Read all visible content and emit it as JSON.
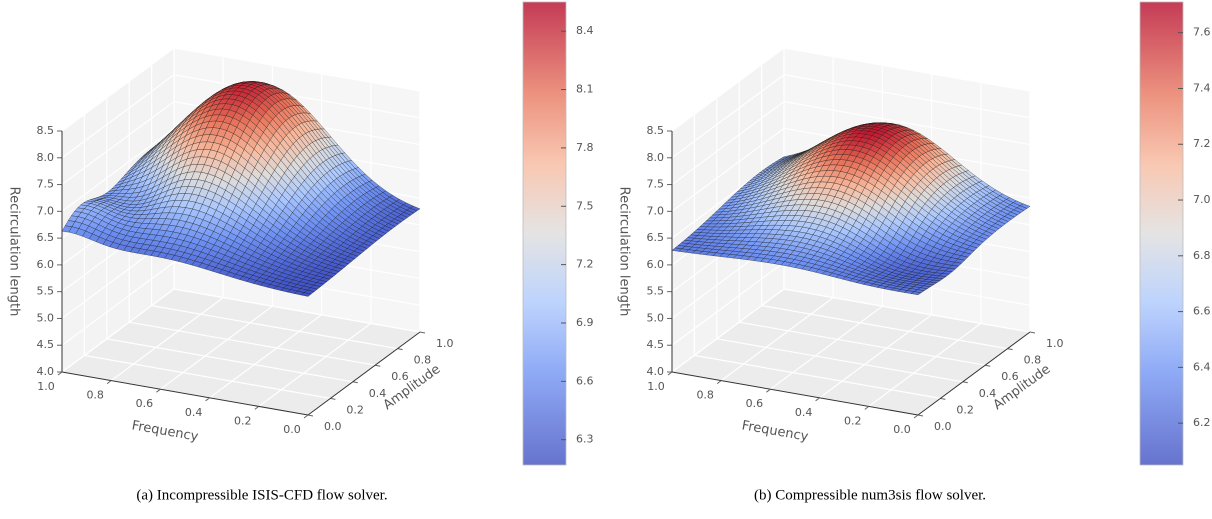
{
  "chart_data": [
    {
      "type": "surface",
      "caption": "(a) Incompressible ISIS-CFD flow solver.",
      "xlabel": "Frequency",
      "ylabel": "Amplitude",
      "zlabel": "Recirculation length",
      "xlim": [
        0,
        1
      ],
      "xticks": [
        {
          "value": 0,
          "label": "0.0"
        },
        0.2,
        0.4,
        0.6,
        0.8,
        {
          "value": 1,
          "label": "1.0"
        }
      ],
      "ylim": [
        0,
        1
      ],
      "yticks": [
        {
          "value": 0,
          "label": "0.0"
        },
        0.2,
        0.4,
        0.6,
        0.8,
        {
          "value": 1,
          "label": "1.0"
        }
      ],
      "zlim": [
        4,
        8.5
      ],
      "zticks": [
        {
          "value": 4,
          "label": "4.0"
        },
        4.5,
        {
          "value": 5,
          "label": "5.0"
        },
        5.5,
        {
          "value": 6,
          "label": "6.0"
        },
        6.5,
        {
          "value": 7,
          "label": "7.0"
        },
        7.5,
        {
          "value": 8,
          "label": "8.0"
        },
        8.5
      ],
      "colormap": "coolwarm",
      "clim": [
        6.17,
        8.55
      ],
      "cticks": [
        6.3,
        6.6,
        6.9,
        7.2,
        7.5,
        7.8,
        8.1,
        8.4
      ]
    },
    {
      "type": "surface",
      "caption": "(b) Compressible num3sis flow solver.",
      "xlabel": "Frequency",
      "ylabel": "Amplitude",
      "zlabel": "Recirculation length",
      "xlim": [
        0,
        1
      ],
      "xticks": [
        {
          "value": 0,
          "label": "0.0"
        },
        0.2,
        0.4,
        0.6,
        0.8,
        {
          "value": 1,
          "label": "1.0"
        }
      ],
      "ylim": [
        0,
        1
      ],
      "yticks": [
        {
          "value": 0,
          "label": "0.0"
        },
        0.2,
        0.4,
        0.6,
        0.8,
        {
          "value": 1,
          "label": "1.0"
        }
      ],
      "zlim": [
        4,
        8.5
      ],
      "zticks": [
        {
          "value": 4,
          "label": "4.0"
        },
        4.5,
        {
          "value": 5,
          "label": "5.0"
        },
        5.5,
        {
          "value": 6,
          "label": "6.0"
        },
        6.5,
        {
          "value": 7,
          "label": "7.0"
        },
        7.5,
        {
          "value": 8,
          "label": "8.0"
        },
        8.5
      ],
      "colormap": "coolwarm",
      "clim": [
        6.05,
        7.71
      ],
      "cticks": [
        6.2,
        6.4,
        6.6,
        {
          "value": 7,
          "label": "7.0"
        },
        6.8,
        7.2,
        7.4,
        7.6
      ]
    }
  ]
}
